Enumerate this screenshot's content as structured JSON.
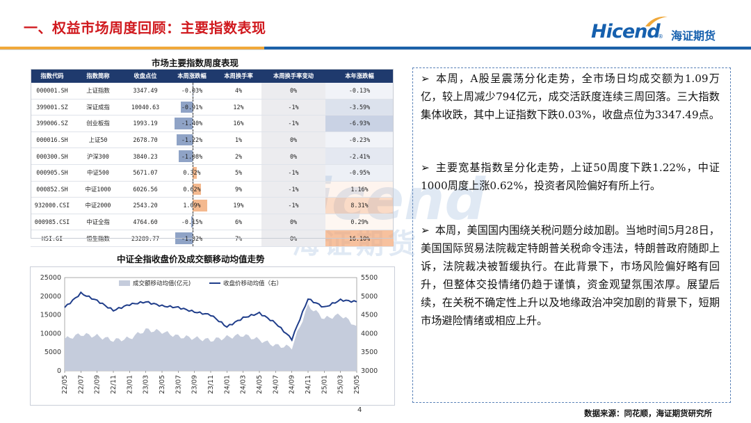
{
  "header": {
    "title": "一、权益市场周度回顾：主要指数表现",
    "logo_text": "Hicend",
    "logo_cn": "海证期货",
    "logo_reg": "®"
  },
  "table": {
    "title": "市场主要指数周度表现",
    "headers": [
      "指数代码",
      "指数简称",
      "收盘点位",
      "本周涨跌幅",
      "本周换手率",
      "本周换手率变动",
      "本年涨跌幅"
    ],
    "rows": [
      {
        "code": "000001.SH",
        "name": "上证指数",
        "close": "3347.49",
        "week_chg": "-0.03%",
        "week_chg_val": -0.03,
        "turnover": "4%",
        "turnover_chg": "0%",
        "ytd": "-0.13%",
        "ytd_val": -0.13
      },
      {
        "code": "399001.SZ",
        "name": "深证成指",
        "close": "10040.63",
        "week_chg": "-0.91%",
        "week_chg_val": -0.91,
        "turnover": "12%",
        "turnover_chg": "-1%",
        "ytd": "-3.59%",
        "ytd_val": -3.59
      },
      {
        "code": "399006.SZ",
        "name": "创业板指",
        "close": "1993.19",
        "week_chg": "-1.40%",
        "week_chg_val": -1.4,
        "turnover": "16%",
        "turnover_chg": "-1%",
        "ytd": "-6.93%",
        "ytd_val": -6.93
      },
      {
        "code": "000016.SH",
        "name": "上证50",
        "close": "2678.70",
        "week_chg": "-1.22%",
        "week_chg_val": -1.22,
        "turnover": "1%",
        "turnover_chg": "0%",
        "ytd": "-0.23%",
        "ytd_val": -0.23
      },
      {
        "code": "000300.SH",
        "name": "沪深300",
        "close": "3840.23",
        "week_chg": "-1.08%",
        "week_chg_val": -1.08,
        "turnover": "2%",
        "turnover_chg": "0%",
        "ytd": "-2.41%",
        "ytd_val": -2.41
      },
      {
        "code": "000905.SH",
        "name": "中证500",
        "close": "5671.07",
        "week_chg": "0.32%",
        "week_chg_val": 0.32,
        "turnover": "5%",
        "turnover_chg": "-1%",
        "ytd": "-0.95%",
        "ytd_val": -0.95
      },
      {
        "code": "000852.SH",
        "name": "中证1000",
        "close": "6026.56",
        "week_chg": "0.62%",
        "week_chg_val": 0.62,
        "turnover": "9%",
        "turnover_chg": "-1%",
        "ytd": "1.16%",
        "ytd_val": 1.16
      },
      {
        "code": "932000.CSI",
        "name": "中证2000",
        "close": "2543.20",
        "week_chg": "1.09%",
        "week_chg_val": 1.09,
        "turnover": "19%",
        "turnover_chg": "-1%",
        "ytd": "8.31%",
        "ytd_val": 8.31
      },
      {
        "code": "000985.CSI",
        "name": "中证全指",
        "close": "4764.60",
        "week_chg": "-0.15%",
        "week_chg_val": -0.15,
        "turnover": "6%",
        "turnover_chg": "0%",
        "ytd": "0.29%",
        "ytd_val": 0.29
      },
      {
        "code": "HSI.GI",
        "name": "恒生指数",
        "close": "23289.77",
        "week_chg": "-1.32%",
        "week_chg_val": -1.32,
        "turnover": "7%",
        "turnover_chg": "0%",
        "ytd": "16.10%",
        "ytd_val": 16.1
      }
    ],
    "colors": {
      "header_bg": "#1f3a6d",
      "neg": "#8fa3c6",
      "pos": "#f4b98f"
    }
  },
  "chart_data": {
    "type": "area+line",
    "title": "中证全指收盘价及成交额移动均值走势",
    "legend": [
      "成交额移动均值(亿元)",
      "收盘价移动均值（右）"
    ],
    "legend_position": "top",
    "x": [
      "22/05",
      "22/07",
      "22/09",
      "22/11",
      "23/01",
      "23/03",
      "23/05",
      "23/07",
      "23/09",
      "23/11",
      "24/01",
      "24/03",
      "24/05",
      "24/07",
      "24/09",
      "24/11",
      "25/01",
      "25/03",
      "25/05"
    ],
    "turnover": [
      8500,
      9800,
      9300,
      8200,
      8700,
      11000,
      10500,
      9200,
      8800,
      8200,
      9000,
      9600,
      8300,
      6800,
      6300,
      17500,
      14000,
      15000,
      12000
    ],
    "close": [
      4700,
      5080,
      4880,
      4620,
      4780,
      4850,
      4740,
      4700,
      4580,
      4500,
      4180,
      4420,
      4550,
      4280,
      3850,
      4930,
      4700,
      4900,
      4850
    ],
    "ylim_left": [
      0,
      25000
    ],
    "ylim_right": [
      3000,
      5500
    ],
    "yticks_left": [
      "0",
      "5000",
      "10000",
      "15000",
      "20000",
      "25000"
    ],
    "yticks_right": [
      "3000",
      "3500",
      "4000",
      "4500",
      "5000",
      "5500"
    ],
    "colors": {
      "area": "#c5ccdc",
      "line": "#1f3d8a"
    }
  },
  "commentary": {
    "paragraphs": [
      "本周，A股呈震荡分化走势，全市场日均成交额为1.09万亿，较上周减少794亿元，成交活跃度连续三周回落。三大指数集体收跌，其中上证指数下跌0.03%，收盘点位为3347.49点。",
      "主要宽基指数呈分化走势，上证50周度下跌1.22%，中证1000周度上涨0.62%，投资者风险偏好有所上行。",
      "本周，美国国内围绕关税问题分歧加剧。当地时间5月28日，美国国际贸易法院裁定特朗普关税命令违法，特朗普政府随即上诉，法院裁决被暂缓执行。在此背景下，市场风险偏好略有回升，但整体交投情绪仍趋于谨慎，资金观望氛围浓厚。展望后续，在关税不确定性上升以及地缘政治冲突加剧的背景下，短期市场避险情绪或相应上升。"
    ],
    "bullet": "➢"
  },
  "footer": {
    "page": "4",
    "source": "数据来源：同花顺，海证期货研究所"
  },
  "watermark": {
    "big": "Hicend",
    "cn": "海证期货"
  }
}
